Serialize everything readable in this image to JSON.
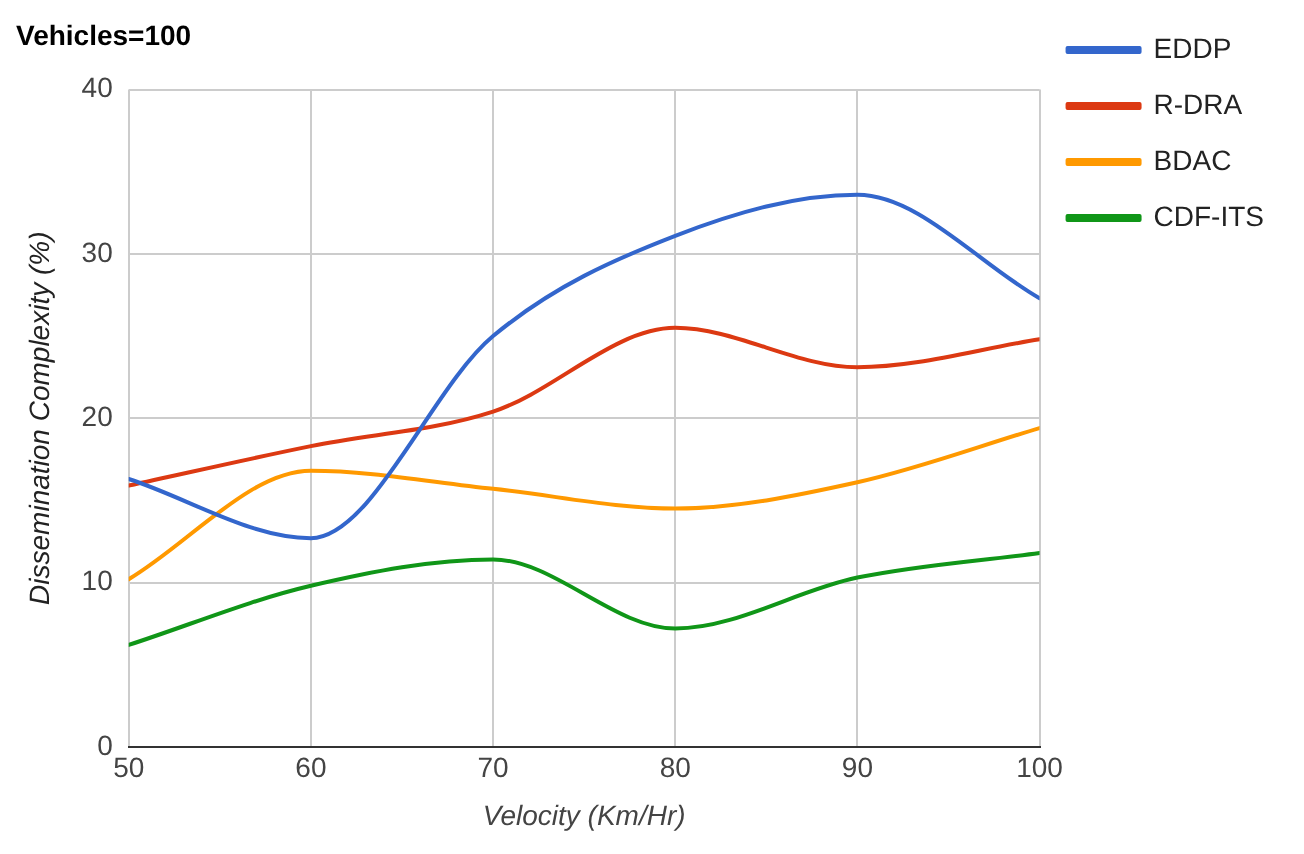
{
  "chart_data": {
    "type": "line",
    "title": "Vehicles=100",
    "xlabel": "Velocity (Km/Hr)",
    "ylabel": "Dissemination Complexity (%)",
    "x": [
      50,
      60,
      70,
      80,
      90,
      100
    ],
    "series": [
      {
        "name": "EDDP",
        "color": "#3366cc",
        "values": [
          16.3,
          12.7,
          25,
          31.1,
          33.6,
          27.3
        ]
      },
      {
        "name": "R-DRA",
        "color": "#dc3912",
        "values": [
          15.9,
          18.3,
          20.4,
          25.5,
          23.1,
          24.8
        ]
      },
      {
        "name": "BDAC",
        "color": "#ff9900",
        "values": [
          10.2,
          16.8,
          15.7,
          14.5,
          16.1,
          19.4
        ]
      },
      {
        "name": "CDF-ITS",
        "color": "#109618",
        "values": [
          6.2,
          9.8,
          11.4,
          7.2,
          10.3,
          11.8
        ]
      }
    ],
    "xlim": [
      50,
      100
    ],
    "xticks": [
      50,
      60,
      70,
      80,
      90,
      100
    ],
    "ylim": [
      0,
      40
    ],
    "yticks": [
      0,
      10,
      20,
      30,
      40
    ],
    "grid": true,
    "legend": "top right",
    "marker": "none",
    "line_style": "solid"
  }
}
